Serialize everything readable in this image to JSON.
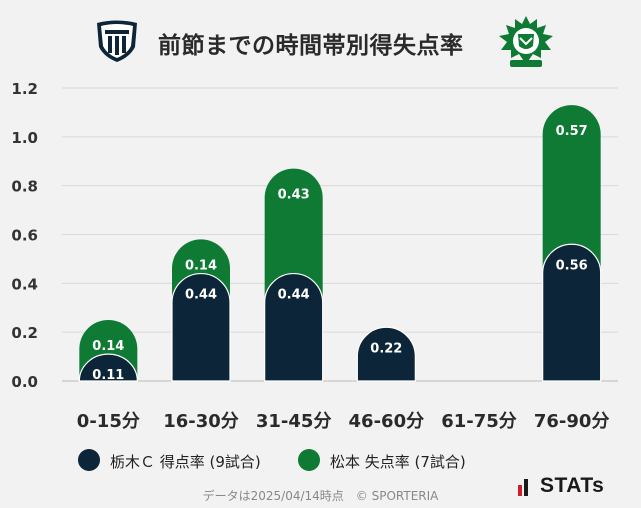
{
  "title": "前節までの時間帯別得失点率",
  "footer": "データは2025/04/14時点　© SPORTERIA",
  "brand": "STATs",
  "colors": {
    "background": "#f2f2f2",
    "series_navy": "#0c2538",
    "series_green": "#0e7a34"
  },
  "chart_data": {
    "type": "bar",
    "stacked": true,
    "categories": [
      "0-15分",
      "16-30分",
      "31-45分",
      "46-60分",
      "61-75分",
      "76-90分"
    ],
    "series": [
      {
        "name": "栃木Ｃ 得点率 (9試合)",
        "color": "#0c2538",
        "values": [
          0.11,
          0.44,
          0.44,
          0.22,
          0,
          0.56
        ]
      },
      {
        "name": "松本 失点率 (7試合)",
        "color": "#0e7a34",
        "values": [
          0.14,
          0.14,
          0.43,
          0,
          0,
          0.57
        ]
      }
    ],
    "ylim": [
      0,
      1.2
    ],
    "yticks": [
      "0.0",
      "0.2",
      "0.4",
      "0.6",
      "0.8",
      "1.0",
      "1.2"
    ],
    "grid": true,
    "legend": "bottom"
  }
}
